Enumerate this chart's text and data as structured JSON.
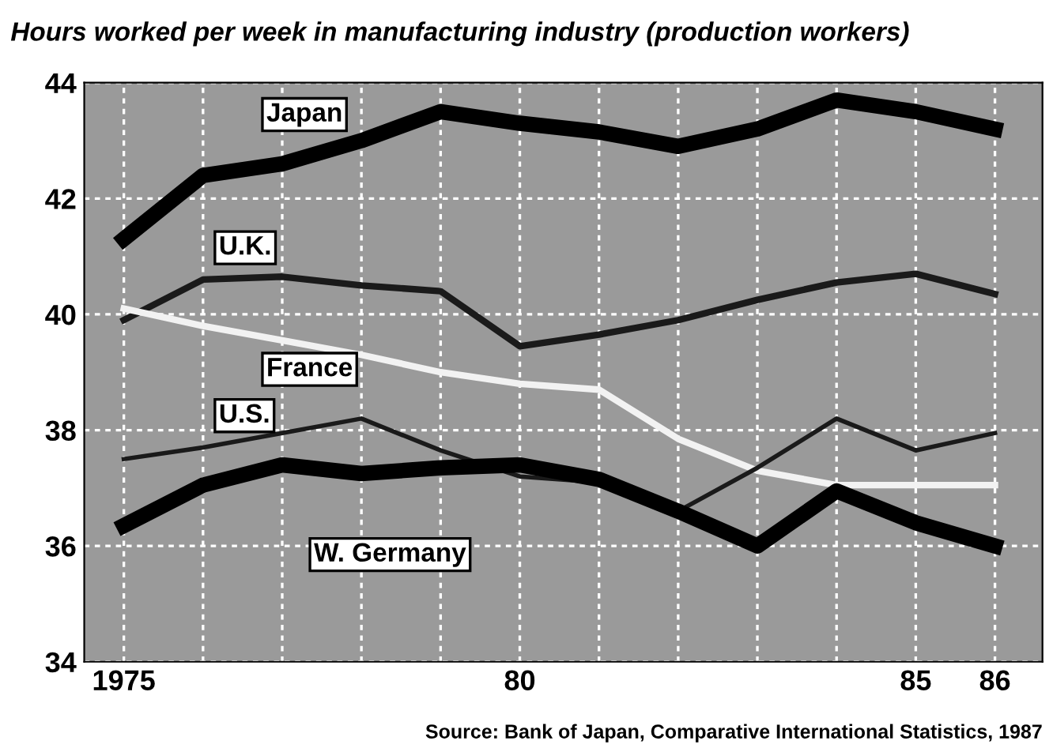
{
  "chart_data": {
    "type": "line",
    "title": "Hours worked per week in manufacturing industry (production workers)",
    "x": [
      1975,
      1976,
      1977,
      1978,
      1979,
      1980,
      1981,
      1982,
      1983,
      1984,
      1985,
      1986
    ],
    "series": [
      {
        "name": "Japan",
        "color": "#000000",
        "values": [
          41.3,
          42.4,
          42.6,
          43.0,
          43.5,
          43.3,
          43.15,
          42.9,
          43.2,
          43.7,
          43.5,
          43.2
        ]
      },
      {
        "name": "U.K.",
        "color": "#1a1a1a",
        "values": [
          39.9,
          40.6,
          40.65,
          40.5,
          40.4,
          39.45,
          39.65,
          39.9,
          40.25,
          40.55,
          40.7,
          40.35
        ]
      },
      {
        "name": "France",
        "color": "#f2f2f2",
        "values": [
          40.1,
          39.8,
          39.55,
          39.3,
          39.0,
          38.8,
          38.7,
          37.85,
          37.3,
          37.05,
          37.05,
          37.05
        ]
      },
      {
        "name": "U.S.",
        "color": "#1a1a1a",
        "values": [
          37.5,
          37.7,
          37.95,
          38.2,
          37.65,
          37.2,
          37.1,
          36.6,
          37.35,
          38.2,
          37.65,
          37.95
        ]
      },
      {
        "name": "W. Germany",
        "color": "#000000",
        "values": [
          36.35,
          37.05,
          37.4,
          37.25,
          37.35,
          37.4,
          37.15,
          36.6,
          36.0,
          36.95,
          36.4,
          36.0
        ]
      }
    ],
    "xlim": [
      1974.5,
      1986.6
    ],
    "xticks": [
      1975,
      {
        "value": 1976,
        "label": null
      },
      {
        "value": 1977,
        "label": null
      },
      {
        "value": 1978,
        "label": null
      },
      {
        "value": 1979,
        "label": null
      },
      {
        "value": 1980,
        "label": "80"
      },
      {
        "value": 1981,
        "label": null
      },
      {
        "value": 1982,
        "label": null
      },
      {
        "value": 1983,
        "label": null
      },
      {
        "value": 1984,
        "label": null
      },
      {
        "value": 1985,
        "label": "85"
      },
      {
        "value": 1986,
        "label": "86"
      }
    ],
    "ylim": [
      34,
      44
    ],
    "yticks": [
      34,
      36,
      38,
      40,
      42,
      44
    ],
    "grid": true,
    "legend": false,
    "marker": "none",
    "line_style": "solid",
    "annotations": [
      "Source: Bank of Japan, Comparative International Statistics, 1987"
    ]
  }
}
